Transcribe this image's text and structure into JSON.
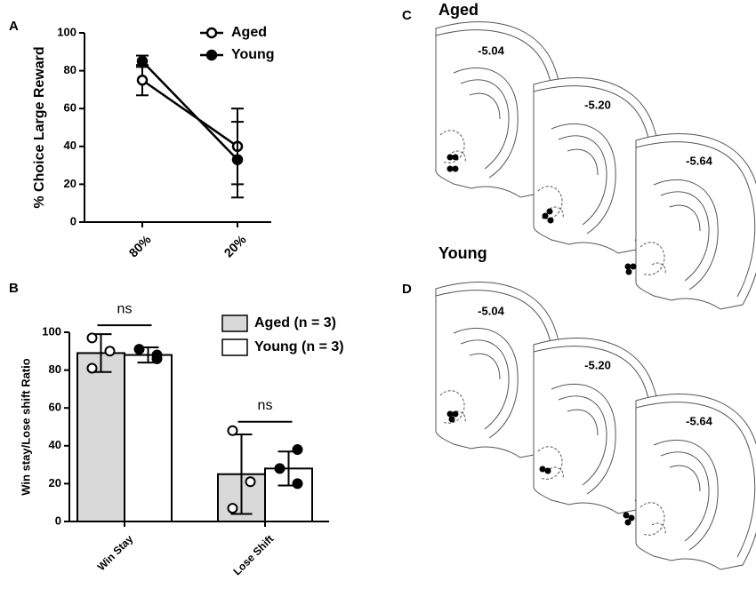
{
  "panels": [
    "A",
    "B",
    "C",
    "D"
  ],
  "chart_data": [
    {
      "type": "line",
      "ylabel": "% Choice Large Reward",
      "categories": [
        "80%",
        "20%"
      ],
      "series": [
        {
          "name": "Aged",
          "color": "#000000",
          "marker": "open",
          "values": [
            75,
            40
          ],
          "errors": [
            8,
            20
          ]
        },
        {
          "name": "Young",
          "color": "#000000",
          "marker": "filled",
          "values": [
            85,
            33
          ],
          "errors": [
            3,
            20
          ]
        }
      ],
      "ylim": [
        0,
        100
      ],
      "yticks": [
        0,
        20,
        40,
        60,
        80,
        100
      ],
      "legend": "upper center"
    },
    {
      "type": "bar",
      "ylabel": "Win stay/Lose shift Ratio",
      "categories": [
        "Win Stay",
        "Lose Shift"
      ],
      "series": [
        {
          "name": "Aged (n = 3)",
          "color": "#d9d9d9",
          "marker": "open",
          "values": [
            89,
            25
          ],
          "errors": [
            10,
            21
          ],
          "points": [
            [
              97,
              90,
              81
            ],
            [
              48,
              21,
              7
            ]
          ]
        },
        {
          "name": "Young (n = 3)",
          "color": "#ffffff",
          "marker": "filled",
          "values": [
            88,
            28
          ],
          "errors": [
            4,
            9
          ],
          "points": [
            [
              86,
              91,
              88
            ],
            [
              38,
              28,
              20
            ]
          ]
        }
      ],
      "annotations": [
        "ns",
        "ns"
      ],
      "ylim": [
        0,
        100
      ],
      "yticks": [
        0,
        20,
        40,
        60,
        80,
        100
      ],
      "legend": "upper right"
    }
  ],
  "atlas": [
    {
      "title": "Aged",
      "levels": [
        "-5.04",
        "-5.20",
        "-5.64"
      ]
    },
    {
      "title": "Young",
      "levels": [
        "-5.04",
        "-5.20",
        "-5.64"
      ]
    }
  ]
}
